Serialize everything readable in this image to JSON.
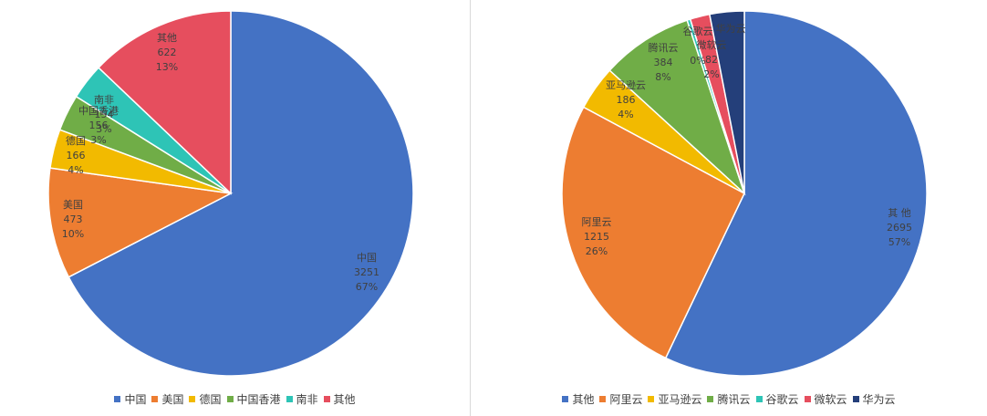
{
  "chart_data": [
    {
      "type": "pie",
      "title": "",
      "legend_position": "bottom",
      "categories": [
        "中国",
        "美国",
        "德国",
        "中国香港",
        "南非",
        "其他"
      ],
      "values": [
        3251,
        473,
        166,
        156,
        154,
        622
      ],
      "percent_labels": [
        "67%",
        "10%",
        "4%",
        "3%",
        "3%",
        "13%"
      ],
      "colors": [
        "#4472C4",
        "#ED7D31",
        "#F2BA00",
        "#70AD47",
        "#2EC4B6",
        "#E64E5E"
      ]
    },
    {
      "type": "pie",
      "title": "",
      "legend_position": "bottom",
      "categories": [
        "其他",
        "阿里云",
        "亚马逊云",
        "腾讯云",
        "谷歌云",
        "微软云",
        "华为云"
      ],
      "labels": [
        "其 他",
        "阿里云",
        "亚马逊云",
        "腾讯云",
        "谷歌云",
        "微软云",
        "华为云"
      ],
      "values": [
        2695,
        1215,
        186,
        384,
        14,
        82,
        144
      ],
      "value_labels": [
        "2695",
        "1215",
        "186",
        "384",
        "",
        "82",
        ""
      ],
      "percent_labels": [
        "57%",
        "26%",
        "4%",
        "8%",
        "0%",
        "2%",
        ""
      ],
      "colors": [
        "#4472C4",
        "#ED7D31",
        "#F2BA00",
        "#70AD47",
        "#2EC4B6",
        "#E64E5E",
        "#243F7A"
      ]
    }
  ]
}
